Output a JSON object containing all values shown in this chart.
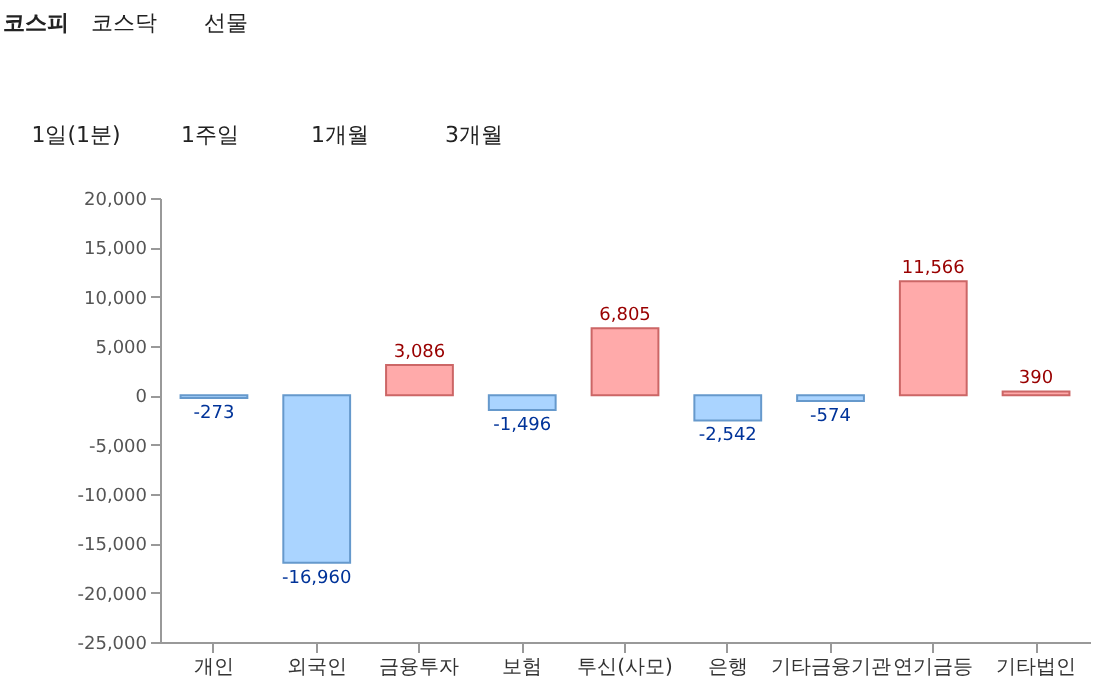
{
  "chart_data": {
    "type": "bar",
    "categories": [
      "개인",
      "외국인",
      "금융투자",
      "보험",
      "투신(사모)",
      "은행",
      "기타금융기관",
      "연기금등",
      "기타법인"
    ],
    "values": [
      -273,
      -16960,
      3086,
      -1496,
      6805,
      -2542,
      -574,
      11566,
      390
    ],
    "colors": [
      "#aad4ff",
      "#aad4ff",
      "#ffaaaa",
      "#aad4ff",
      "#ffaaaa",
      "#aad4ff",
      "#aad4ff",
      "#ffaaaa",
      "#ffaaaa"
    ],
    "ylim": [
      -25000,
      20000
    ],
    "yticks": [
      {
        "value": -25000,
        "label": "-25,000"
      },
      {
        "value": -20000,
        "label": "-20,000"
      },
      {
        "value": -15000,
        "label": "-15,000"
      },
      {
        "value": -10000,
        "label": "-10,000"
      },
      {
        "value": -5000,
        "label": "-5,000"
      },
      0,
      {
        "value": 5000,
        "label": "5,000"
      },
      {
        "value": 10000,
        "label": "10,000"
      },
      {
        "value": 15000,
        "label": "15,000"
      },
      {
        "value": 20000,
        "label": "20,000"
      }
    ],
    "value_labels": [
      "-273",
      "-16,960",
      "3,086",
      "-1,496",
      "6,805",
      "-2,542",
      "-574",
      "11,566",
      "390"
    ],
    "grid": false,
    "annotations": [
      "코스피",
      "코스닥",
      "선물",
      "1일(1분)",
      "1주일",
      "1개월",
      "3개월"
    ]
  }
}
